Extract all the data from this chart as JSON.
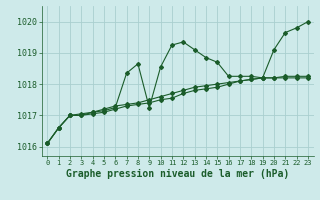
{
  "title": "Graphe pression niveau de la mer (hPa)",
  "background_color": "#ceeaea",
  "grid_color": "#aacfcf",
  "line_color": "#1a5c2a",
  "xlim": [
    -0.5,
    23.5
  ],
  "ylim": [
    1015.7,
    1020.5
  ],
  "yticks": [
    1016,
    1017,
    1018,
    1019,
    1020
  ],
  "xticks": [
    0,
    1,
    2,
    3,
    4,
    5,
    6,
    7,
    8,
    9,
    10,
    11,
    12,
    13,
    14,
    15,
    16,
    17,
    18,
    19,
    20,
    21,
    22,
    23
  ],
  "series": [
    [
      1016.1,
      1016.6,
      1017.0,
      1017.0,
      1017.1,
      1017.15,
      1017.25,
      1018.35,
      1018.65,
      1017.25,
      1018.55,
      1019.25,
      1019.35,
      1019.1,
      1018.85,
      1018.7,
      1018.25,
      1018.25,
      1018.25,
      1018.2,
      1019.1,
      1019.65,
      1019.8,
      1020.0
    ],
    [
      1016.1,
      1016.6,
      1017.0,
      1017.0,
      1017.05,
      1017.1,
      1017.2,
      1017.3,
      1017.35,
      1017.4,
      1017.5,
      1017.55,
      1017.7,
      1017.8,
      1017.85,
      1017.9,
      1018.0,
      1018.1,
      1018.15,
      1018.2,
      1018.2,
      1018.2,
      1018.2,
      1018.2
    ],
    [
      1016.1,
      1016.6,
      1017.0,
      1017.05,
      1017.1,
      1017.2,
      1017.3,
      1017.35,
      1017.4,
      1017.5,
      1017.6,
      1017.7,
      1017.8,
      1017.9,
      1017.95,
      1018.0,
      1018.05,
      1018.1,
      1018.15,
      1018.2,
      1018.2,
      1018.25,
      1018.25,
      1018.25
    ]
  ],
  "tick_fontsize": 6,
  "xlabel_fontsize": 7,
  "marker": "D",
  "markersize": 2.0,
  "linewidth": 0.8
}
